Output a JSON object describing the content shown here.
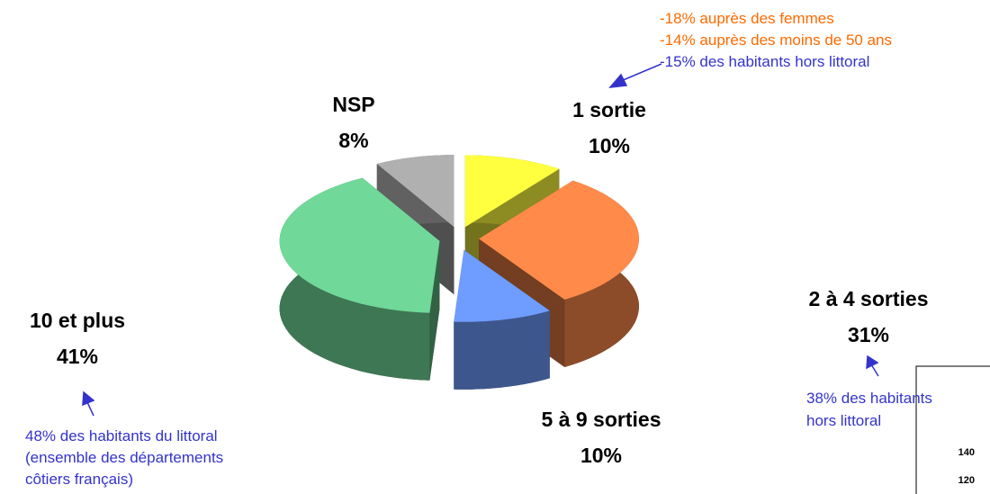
{
  "chart_data": {
    "type": "pie",
    "categories": [
      "1 sortie",
      "2 à 4 sorties",
      "5 à 9 sorties",
      "10 et plus",
      "NSP"
    ],
    "values": [
      10,
      31,
      10,
      41,
      8
    ],
    "value_labels": [
      "10%",
      "31%",
      "10%",
      "41%",
      "8%"
    ],
    "colors": [
      "#ffff40",
      "#ff8a4a",
      "#6f9cff",
      "#70d898",
      "#b0b0b0"
    ],
    "annotations": [
      {
        "lines": [
          "-18% auprès des femmes",
          "-14% auprès des moins de 50 ans",
          "-15% des habitants hors littoral"
        ],
        "colors": [
          "#ff6a00",
          "#ff6a00",
          "#3333cc"
        ]
      },
      {
        "lines": [
          "38% des habitants",
          "hors littoral"
        ],
        "colors": [
          "#3333cc",
          "#3333cc"
        ]
      },
      {
        "lines": [
          "48% des habitants du littoral",
          "(ensemble des départements",
          "côtiers français)"
        ],
        "colors": [
          "#3333cc",
          "#3333cc",
          "#3333cc"
        ]
      }
    ]
  },
  "inset_fragment": {
    "labels": [
      "140",
      "120"
    ]
  }
}
